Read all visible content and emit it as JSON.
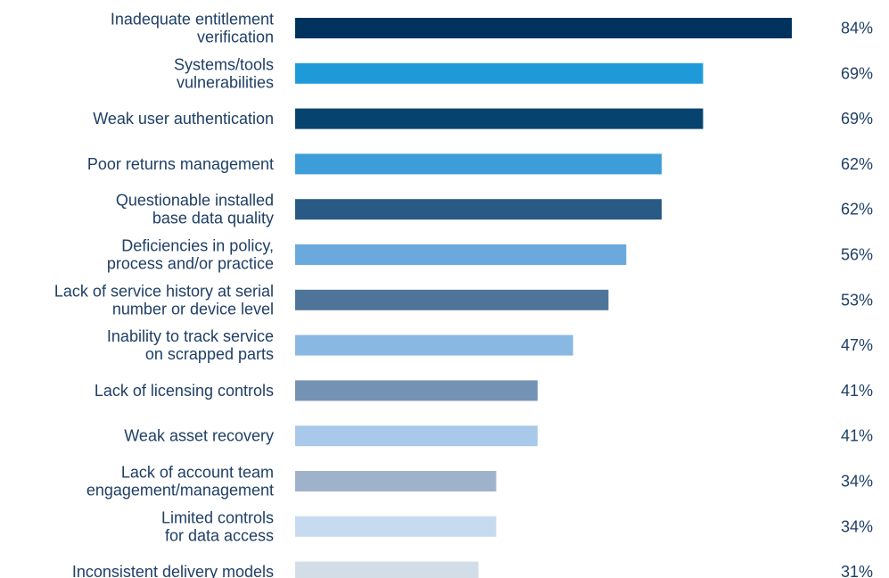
{
  "chart_data": {
    "type": "bar",
    "orientation": "horizontal",
    "categories": [
      [
        "Inadequate entitlement",
        "verification"
      ],
      [
        "Systems/tools",
        "vulnerabilities"
      ],
      [
        "Weak user authentication"
      ],
      [
        "Poor returns management"
      ],
      [
        "Questionable installed",
        "base data quality"
      ],
      [
        "Deficiencies in policy,",
        "process and/or practice"
      ],
      [
        "Lack of service history at serial",
        "number or device level"
      ],
      [
        "Inability to track service",
        "on scrapped parts"
      ],
      [
        "Lack of licensing controls"
      ],
      [
        "Weak asset recovery"
      ],
      [
        "Lack of account team",
        "engagement/management"
      ],
      [
        "Limited controls",
        "for data access"
      ],
      [
        "Inconsistent delivery models"
      ]
    ],
    "values": [
      84,
      69,
      69,
      62,
      62,
      56,
      53,
      47,
      41,
      41,
      34,
      34,
      31
    ],
    "value_labels": [
      "84%",
      "69%",
      "69%",
      "62%",
      "62%",
      "56%",
      "53%",
      "47%",
      "41%",
      "41%",
      "34%",
      "34%",
      "31%"
    ],
    "colors": [
      "#00325e",
      "#1f9ad9",
      "#06446f",
      "#3d9dd8",
      "#285a85",
      "#69a9dd",
      "#4e7599",
      "#89b8e3",
      "#7493b4",
      "#a9c9ea",
      "#9fb2cb",
      "#c6dbef",
      "#d3dde8"
    ],
    "title": "",
    "xlabel": "",
    "ylabel": "",
    "xlim": [
      0,
      84
    ],
    "grid": false,
    "legend": "none"
  }
}
